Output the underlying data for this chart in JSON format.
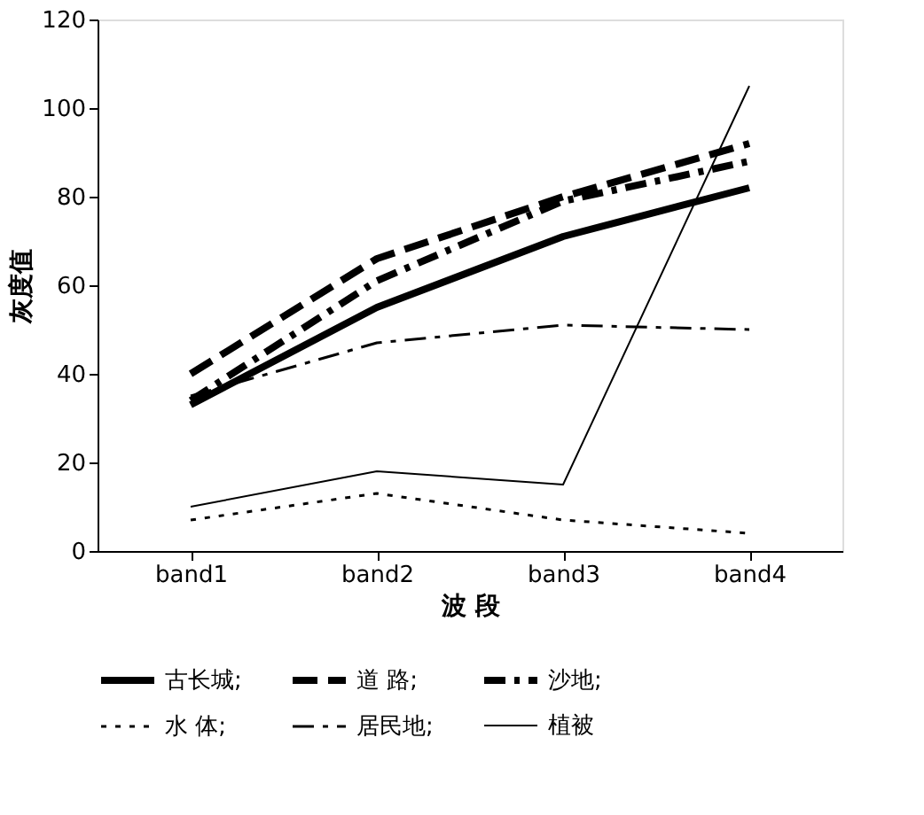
{
  "chart_data": {
    "type": "line",
    "xlabel": "波 段",
    "ylabel": "灰度值",
    "categories": [
      "band1",
      "band2",
      "band3",
      "band4"
    ],
    "ylim": [
      0,
      120
    ],
    "yticks": [
      0,
      20,
      40,
      60,
      80,
      100,
      120
    ],
    "grid": false,
    "legend": "bottom",
    "marker": "none",
    "series": [
      {
        "name": "古长城;",
        "color": "#000000",
        "line_style": "solid",
        "values": [
          33,
          55,
          71,
          82
        ]
      },
      {
        "name": "道 路;",
        "color": "#000000",
        "line_style": "dashed",
        "values": [
          40,
          66,
          80,
          92
        ]
      },
      {
        "name": "沙地;",
        "color": "#000000",
        "line_style": "dashdot",
        "values": [
          34,
          61,
          79,
          88
        ]
      },
      {
        "name": "水 体;",
        "color": "#000000",
        "line_style": "dotted",
        "values": [
          7,
          13,
          7,
          4
        ]
      },
      {
        "name": "居民地;",
        "color": "#000000",
        "line_style": "dashdot",
        "values": [
          35,
          47,
          51,
          50
        ]
      },
      {
        "name": "植被",
        "color": "#000000",
        "line_style": "solid",
        "values": [
          10,
          18,
          15,
          105
        ]
      }
    ]
  }
}
